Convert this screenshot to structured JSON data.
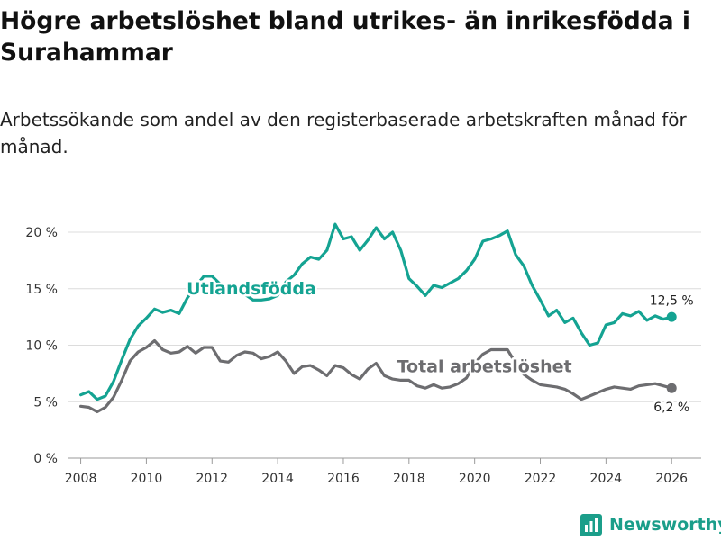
{
  "header": {
    "title": "Högre arbetslöshet bland utrikes- än inrikesfödda i Surahammar",
    "subtitle": "Arbetssökande som andel av den registerbaserade arbetskraften månad för månad."
  },
  "brand": {
    "name": "Newsworthy"
  },
  "colors": {
    "foreign": "#14a392",
    "total": "#6d6d70",
    "grid": "#dcdcdc",
    "text": "#333333"
  },
  "chart_data": {
    "type": "line",
    "title": "Högre arbetslöshet bland utrikes- än inrikesfödda i Surahammar",
    "xlabel": "",
    "ylabel": "",
    "xlim": [
      2007.6,
      2026.9
    ],
    "ylim": [
      0,
      20
    ],
    "yticks": [
      0,
      5,
      10,
      15,
      20
    ],
    "ytick_labels": [
      "0 %",
      "5 %",
      "10 %",
      "15 %",
      "20 %"
    ],
    "xticks": [
      2008,
      2010,
      2012,
      2014,
      2016,
      2018,
      2020,
      2022,
      2024,
      2026
    ],
    "xtick_labels": [
      "2008",
      "2010",
      "2012",
      "2014",
      "2016",
      "2018",
      "2020",
      "2022",
      "2024",
      "2026"
    ],
    "series": [
      {
        "name": "Utlandsfödda",
        "label": "Utlandsfödda",
        "end_label": "12,5 %",
        "x": [
          2008.0,
          2008.25,
          2008.5,
          2008.75,
          2009.0,
          2009.25,
          2009.5,
          2009.75,
          2010.0,
          2010.25,
          2010.5,
          2010.75,
          2011.0,
          2011.25,
          2011.5,
          2011.75,
          2012.0,
          2012.25,
          2012.5,
          2012.75,
          2013.0,
          2013.25,
          2013.5,
          2013.75,
          2014.0,
          2014.25,
          2014.5,
          2014.75,
          2015.0,
          2015.25,
          2015.5,
          2015.75,
          2016.0,
          2016.25,
          2016.5,
          2016.75,
          2017.0,
          2017.25,
          2017.5,
          2017.75,
          2018.0,
          2018.25,
          2018.5,
          2018.75,
          2019.0,
          2019.25,
          2019.5,
          2019.75,
          2020.0,
          2020.25,
          2020.5,
          2020.75,
          2021.0,
          2021.25,
          2021.5,
          2021.75,
          2022.0,
          2022.25,
          2022.5,
          2022.75,
          2023.0,
          2023.25,
          2023.5,
          2023.75,
          2024.0,
          2024.25,
          2024.5,
          2024.75,
          2025.0,
          2025.25,
          2025.5,
          2025.75,
          2026.0
        ],
        "values": [
          5.6,
          5.9,
          5.2,
          5.5,
          6.8,
          8.7,
          10.5,
          11.7,
          12.4,
          13.2,
          12.9,
          13.1,
          12.8,
          14.2,
          15.2,
          16.1,
          16.1,
          15.4,
          14.8,
          14.6,
          14.5,
          14.0,
          14.0,
          14.1,
          14.4,
          15.6,
          16.2,
          17.2,
          17.8,
          17.6,
          18.4,
          20.7,
          19.4,
          19.6,
          18.4,
          19.3,
          20.4,
          19.4,
          20.0,
          18.4,
          15.9,
          15.2,
          14.4,
          15.3,
          15.1,
          15.5,
          15.9,
          16.6,
          17.6,
          19.2,
          19.4,
          19.7,
          20.1,
          18.0,
          17.0,
          15.3,
          14.0,
          12.6,
          13.1,
          12.0,
          12.4,
          11.1,
          10.0,
          10.2,
          11.8,
          12.0,
          12.8,
          12.6,
          13.0,
          12.2,
          12.6,
          12.3,
          12.5
        ]
      },
      {
        "name": "Total arbetslöshet",
        "label": "Total arbetslöshet",
        "end_label": "6,2 %",
        "x": [
          2008.0,
          2008.25,
          2008.5,
          2008.75,
          2009.0,
          2009.25,
          2009.5,
          2009.75,
          2010.0,
          2010.25,
          2010.5,
          2010.75,
          2011.0,
          2011.25,
          2011.5,
          2011.75,
          2012.0,
          2012.25,
          2012.5,
          2012.75,
          2013.0,
          2013.25,
          2013.5,
          2013.75,
          2014.0,
          2014.25,
          2014.5,
          2014.75,
          2015.0,
          2015.25,
          2015.5,
          2015.75,
          2016.0,
          2016.25,
          2016.5,
          2016.75,
          2017.0,
          2017.25,
          2017.5,
          2017.75,
          2018.0,
          2018.25,
          2018.5,
          2018.75,
          2019.0,
          2019.25,
          2019.5,
          2019.75,
          2020.0,
          2020.25,
          2020.5,
          2020.75,
          2021.0,
          2021.25,
          2021.5,
          2021.75,
          2022.0,
          2022.25,
          2022.5,
          2022.75,
          2023.0,
          2023.25,
          2023.5,
          2023.75,
          2024.0,
          2024.25,
          2024.5,
          2024.75,
          2025.0,
          2025.25,
          2025.5,
          2025.75,
          2026.0
        ],
        "values": [
          4.6,
          4.5,
          4.1,
          4.5,
          5.4,
          6.9,
          8.6,
          9.4,
          9.8,
          10.4,
          9.6,
          9.3,
          9.4,
          9.9,
          9.3,
          9.8,
          9.8,
          8.6,
          8.5,
          9.1,
          9.4,
          9.3,
          8.8,
          9.0,
          9.4,
          8.6,
          7.5,
          8.1,
          8.2,
          7.8,
          7.3,
          8.2,
          8.0,
          7.4,
          7.0,
          7.9,
          8.4,
          7.3,
          7.0,
          6.9,
          6.9,
          6.4,
          6.2,
          6.5,
          6.2,
          6.3,
          6.6,
          7.1,
          8.4,
          9.2,
          9.6,
          9.6,
          9.6,
          8.4,
          7.4,
          6.9,
          6.5,
          6.4,
          6.3,
          6.1,
          5.7,
          5.2,
          5.5,
          5.8,
          6.1,
          6.3,
          6.2,
          6.1,
          6.4,
          6.5,
          6.6,
          6.4,
          6.2
        ]
      }
    ]
  }
}
